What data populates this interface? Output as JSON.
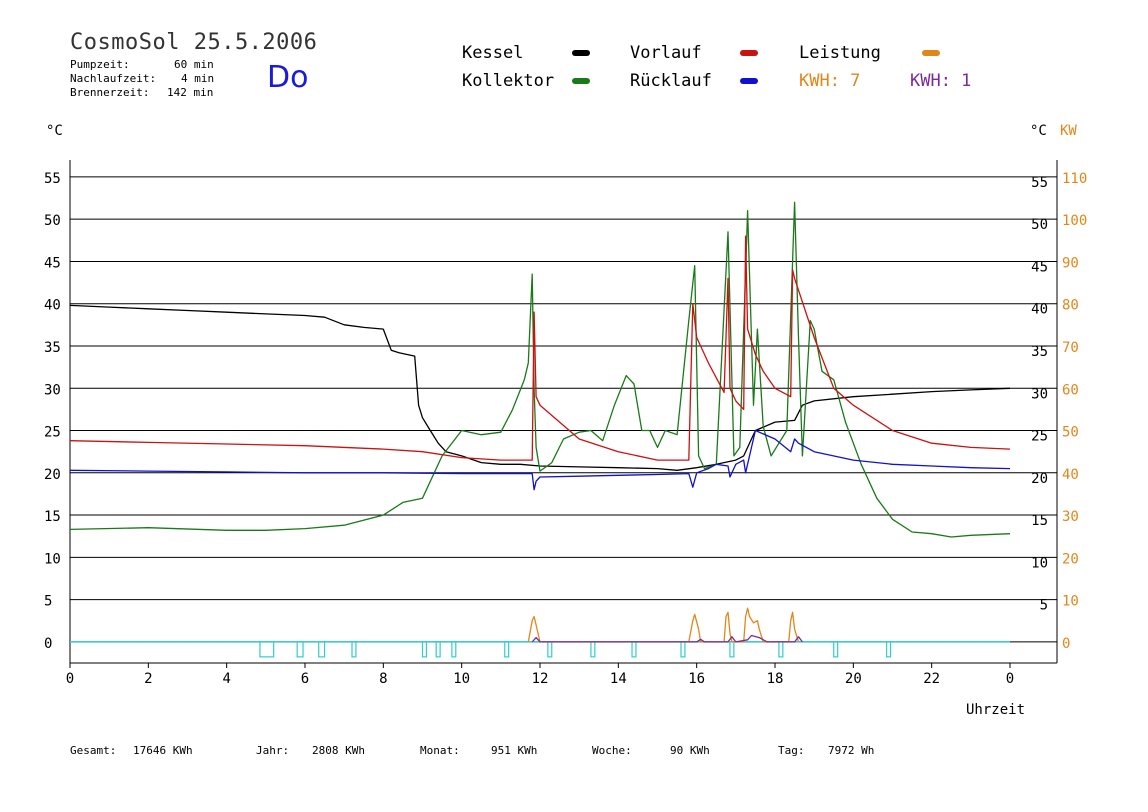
{
  "header": {
    "title": "CosmoSol 25.5.2006",
    "pumpzeit_label": "Pumpzeit:",
    "pumpzeit_value": "60 min",
    "nachlaufzeit_label": "Nachlaufzeit:",
    "nachlaufzeit_value": "4 min",
    "brennerzeit_label": "Brennerzeit:",
    "brennerzeit_value": "142 min",
    "day": "Do"
  },
  "legend": {
    "kessel": "Kessel",
    "kollektor": "Kollektor",
    "vorlauf": "Vorlauf",
    "ruecklauf": "Rücklauf",
    "leistung": "Leistung",
    "kwh1": "KWH: 7",
    "kwh2": "KWH: 1"
  },
  "axes": {
    "left_unit": "°C",
    "right_unit": "°C",
    "right_unit2": "KW",
    "xlabel": "Uhrzeit"
  },
  "footer": {
    "gesamt_label": "Gesamt:",
    "gesamt_value": "17646 KWh",
    "jahr_label": "Jahr:",
    "jahr_value": "2808 KWh",
    "monat_label": "Monat:",
    "monat_value": "951 KWh",
    "woche_label": "Woche:",
    "woche_value": "90 KWh",
    "tag_label": "Tag:",
    "tag_value": "7972 Wh"
  },
  "colors": {
    "kessel": "#000000",
    "kollektor": "#1a7a1a",
    "vorlauf": "#cc1111",
    "ruecklauf": "#1111cc",
    "leistung": "#e0871a",
    "leistung2": "#7a2a9a",
    "pump": "#33cccc"
  },
  "chart_data": {
    "type": "line",
    "xlabel": "Uhrzeit",
    "ylabel": "°C",
    "ylabel_right": "KW",
    "xlim": [
      0,
      24
    ],
    "ylim": [
      -2.5,
      57
    ],
    "y_ticks_left": [
      "55",
      "50",
      "45",
      "40",
      "35",
      "30",
      "25",
      "20",
      "15",
      "10",
      "5",
      "0"
    ],
    "y_ticks_right_c": [
      "55",
      "50",
      "45",
      "40",
      "35",
      "30",
      "25",
      "20",
      "15",
      "10",
      "5"
    ],
    "y_ticks_right_kw": [
      "110",
      "100",
      "90",
      "80",
      "70",
      "60",
      "50",
      "40",
      "30",
      "20",
      "10",
      "0"
    ],
    "x_ticks": [
      "0",
      "2",
      "4",
      "6",
      "8",
      "10",
      "12",
      "14",
      "16",
      "18",
      "20",
      "22",
      "0"
    ],
    "series": [
      {
        "name": "Kessel",
        "color": "#000000",
        "x": [
          0,
          1,
          2,
          3,
          4,
          5,
          6,
          6.5,
          7,
          7.5,
          8,
          8.2,
          8.4,
          8.8,
          8.9,
          9.0,
          9.2,
          9.4,
          9.6,
          10,
          10.5,
          11,
          11.5,
          12,
          13,
          14,
          15,
          15.5,
          16,
          16.5,
          17,
          17.2,
          17.5,
          18,
          18.5,
          18.7,
          19,
          20,
          21,
          22,
          23,
          24
        ],
        "y": [
          39.8,
          39.6,
          39.4,
          39.2,
          39.0,
          38.8,
          38.6,
          38.4,
          37.5,
          37.2,
          37.0,
          34.5,
          34.2,
          33.8,
          28,
          26.5,
          25,
          23.5,
          22.5,
          22,
          21.2,
          21.0,
          21.0,
          20.8,
          20.7,
          20.6,
          20.5,
          20.3,
          20.6,
          21,
          21.5,
          22,
          25,
          26,
          26.2,
          28,
          28.5,
          29.0,
          29.3,
          29.6,
          29.8,
          30.0
        ]
      },
      {
        "name": "Kollektor",
        "color": "#1a7a1a",
        "x": [
          0,
          2,
          4,
          5,
          6,
          7,
          8,
          8.5,
          9,
          9.5,
          10,
          10.5,
          11,
          11.3,
          11.6,
          11.7,
          11.8,
          11.85,
          11.9,
          12,
          12.3,
          12.6,
          13,
          13.3,
          13.6,
          13.9,
          14.2,
          14.4,
          14.6,
          14.8,
          15,
          15.2,
          15.5,
          15.8,
          15.95,
          16.05,
          16.2,
          16.5,
          16.8,
          16.95,
          17.1,
          17.3,
          17.45,
          17.55,
          17.7,
          17.9,
          18.1,
          18.3,
          18.5,
          18.6,
          18.7,
          18.9,
          19,
          19.2,
          19.5,
          19.8,
          20.2,
          20.6,
          21,
          21.5,
          22,
          22.5,
          23,
          24
        ],
        "y": [
          13.3,
          13.5,
          13.2,
          13.2,
          13.4,
          13.8,
          15,
          16.5,
          17,
          22,
          25,
          24.5,
          24.8,
          27.5,
          31,
          33,
          43.5,
          30,
          23,
          20.2,
          21.2,
          24,
          24.8,
          25,
          23.8,
          28,
          31.5,
          30.5,
          25,
          25,
          23,
          25,
          24.5,
          38,
          44.5,
          22,
          20.5,
          21,
          48.5,
          22,
          23,
          51,
          28,
          37,
          25.5,
          22,
          23.5,
          25,
          52,
          36,
          22,
          38,
          37,
          32,
          31,
          26,
          21,
          17,
          14.5,
          13.0,
          12.8,
          12.4,
          12.6,
          12.8
        ]
      },
      {
        "name": "Vorlauf",
        "color": "#cc1111",
        "x": [
          0,
          2,
          4,
          6,
          8,
          9,
          10,
          11,
          11.8,
          11.85,
          11.9,
          12,
          12.5,
          13,
          14,
          15,
          15.8,
          15.9,
          16,
          16.3,
          16.7,
          16.8,
          16.85,
          17,
          17.2,
          17.25,
          17.3,
          17.5,
          17.7,
          18,
          18.4,
          18.45,
          18.5,
          19,
          19.5,
          20,
          21,
          22,
          23,
          24
        ],
        "y": [
          23.8,
          23.6,
          23.4,
          23.2,
          22.8,
          22.5,
          21.8,
          21.5,
          21.5,
          39,
          29,
          28,
          26,
          24,
          22.5,
          21.5,
          21.5,
          40,
          36,
          33,
          29.5,
          43,
          30,
          28.5,
          27.5,
          48,
          37,
          34,
          32,
          30,
          29,
          44,
          43,
          36,
          30,
          28,
          25,
          23.5,
          23,
          22.8
        ]
      },
      {
        "name": "Rücklauf",
        "color": "#1111cc",
        "x": [
          0,
          2,
          4,
          6,
          8,
          10,
          11.8,
          11.85,
          11.9,
          12,
          13,
          14,
          15,
          15.8,
          15.9,
          16,
          16.3,
          16.5,
          16.8,
          16.85,
          17,
          17.2,
          17.25,
          17.5,
          18,
          18.4,
          18.5,
          18.6,
          19,
          20,
          21,
          22,
          23,
          24
        ],
        "y": [
          20.3,
          20.2,
          20.1,
          20.0,
          20.0,
          19.9,
          19.9,
          18.0,
          19.0,
          19.5,
          19.6,
          19.7,
          19.8,
          19.9,
          18.3,
          20,
          20.5,
          21,
          20.8,
          19.5,
          21,
          21.5,
          20,
          25,
          24,
          22.5,
          24,
          23.5,
          22.5,
          21.5,
          21,
          20.8,
          20.6,
          20.5
        ]
      },
      {
        "name": "Leistung",
        "color": "#e0871a",
        "axis": "kw",
        "x": [
          11.7,
          11.8,
          11.85,
          11.9,
          12.0,
          15.8,
          15.9,
          15.95,
          16.05,
          16.1,
          16.7,
          16.75,
          16.8,
          16.85,
          16.9,
          17.2,
          17.25,
          17.3,
          17.35,
          17.45,
          17.55,
          17.6,
          17.7,
          18.35,
          18.4,
          18.45,
          18.5,
          18.6
        ],
        "y": [
          0,
          5,
          6,
          4,
          0,
          0,
          5,
          6.5,
          3,
          0,
          0,
          6,
          7,
          2,
          0,
          0,
          6,
          8,
          6,
          4.5,
          5,
          3,
          0,
          0,
          5,
          7,
          3,
          0
        ]
      },
      {
        "name": "KWH",
        "color": "#7a2a9a",
        "axis": "kw",
        "x": [
          11.8,
          11.9,
          12.0,
          16.0,
          16.1,
          16.2,
          16.8,
          16.9,
          17.0,
          17.3,
          17.4,
          17.6,
          17.8,
          18.5,
          18.6,
          18.7
        ],
        "y": [
          0,
          1.0,
          0,
          0,
          0.6,
          0,
          0,
          1.2,
          0,
          0.5,
          1.5,
          1.0,
          0,
          0,
          1.2,
          0
        ]
      }
    ],
    "pump_pulses": [
      {
        "start": 4.85,
        "end": 5.2
      },
      {
        "start": 5.8,
        "end": 5.95
      },
      {
        "start": 6.35,
        "end": 6.5
      },
      {
        "start": 7.2,
        "end": 7.3
      },
      {
        "start": 9.0,
        "end": 9.1
      },
      {
        "start": 9.35,
        "end": 9.45
      },
      {
        "start": 9.75,
        "end": 9.85
      },
      {
        "start": 11.1,
        "end": 11.2
      },
      {
        "start": 12.2,
        "end": 12.3
      },
      {
        "start": 13.3,
        "end": 13.4
      },
      {
        "start": 14.35,
        "end": 14.45
      },
      {
        "start": 15.6,
        "end": 15.7
      },
      {
        "start": 16.85,
        "end": 16.95
      },
      {
        "start": 18.1,
        "end": 18.2
      },
      {
        "start": 19.5,
        "end": 19.6
      },
      {
        "start": 20.85,
        "end": 20.95
      }
    ]
  }
}
